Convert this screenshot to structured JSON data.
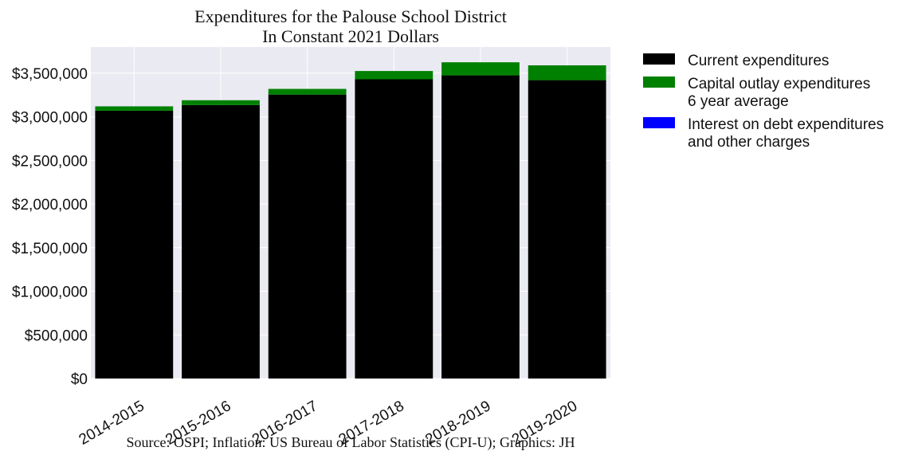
{
  "chart_data": {
    "type": "bar",
    "stacked": true,
    "title": [
      "Expenditures for the Palouse School District",
      "In Constant 2021 Dollars"
    ],
    "categories": [
      "2014-2015",
      "2015-2016",
      "2016-2017",
      "2017-2018",
      "2018-2019",
      "2019-2020"
    ],
    "series": [
      {
        "name": "Current expenditures",
        "color": "#000000",
        "values": [
          3070000,
          3135000,
          3255000,
          3430000,
          3475000,
          3420000
        ]
      },
      {
        "name": "Capital outlay expenditures\n6 year average",
        "color": "#008000",
        "values": [
          50000,
          55000,
          65000,
          95000,
          150000,
          170000
        ]
      },
      {
        "name": "Interest on debt expenditures\nand other charges",
        "color": "#0000ff",
        "values": [
          0,
          0,
          0,
          0,
          0,
          0
        ]
      }
    ],
    "ylim": [
      0,
      3800000
    ],
    "yticks": [
      0,
      500000,
      1000000,
      1500000,
      2000000,
      2500000,
      3000000,
      3500000
    ],
    "ytick_labels": [
      "$0",
      "$500,000",
      "$1,000,000",
      "$1,500,000",
      "$2,000,000",
      "$2,500,000",
      "$3,000,000",
      "$3,500,000"
    ],
    "grid": true,
    "legend_position": "outside-right",
    "source": "Source: OSPI; Inflation: US Bureau of Labor Statistics (CPI-U); Graphics: JH"
  }
}
